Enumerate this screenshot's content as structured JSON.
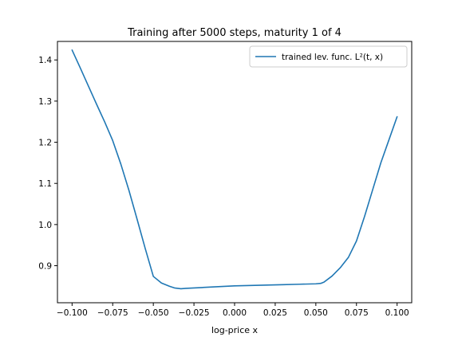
{
  "chart_data": {
    "type": "line",
    "title": "Training after 5000 steps, maturity 1 of 4",
    "xlabel": "log-price x",
    "ylabel": "",
    "xlim": [
      -0.109,
      0.109
    ],
    "ylim": [
      0.81,
      1.445
    ],
    "xticks": [
      -0.1,
      -0.075,
      -0.05,
      -0.025,
      0.0,
      0.025,
      0.05,
      0.075,
      0.1
    ],
    "xtick_labels": [
      "−0.100",
      "−0.075",
      "−0.050",
      "−0.025",
      "0.000",
      "0.025",
      "0.050",
      "0.075",
      "0.100"
    ],
    "yticks": [
      0.9,
      1.0,
      1.1,
      1.2,
      1.3,
      1.4
    ],
    "ytick_labels": [
      "0.9",
      "1.0",
      "1.1",
      "1.2",
      "1.3",
      "1.4"
    ],
    "grid": false,
    "legend_position": "top-right",
    "color": "#1f77b4",
    "series": [
      {
        "name": "trained lev. func. L²(t, x)",
        "x": [
          -0.1,
          -0.095,
          -0.09,
          -0.085,
          -0.08,
          -0.075,
          -0.07,
          -0.065,
          -0.06,
          -0.055,
          -0.05,
          -0.045,
          -0.04,
          -0.037,
          -0.035,
          -0.033,
          -0.03,
          -0.025,
          -0.02,
          -0.01,
          0.0,
          0.01,
          0.02,
          0.03,
          0.04,
          0.05,
          0.053,
          0.055,
          0.06,
          0.065,
          0.07,
          0.075,
          0.08,
          0.085,
          0.09,
          0.095,
          0.1
        ],
        "y": [
          1.424,
          1.381,
          1.337,
          1.293,
          1.25,
          1.204,
          1.147,
          1.083,
          1.013,
          0.942,
          0.874,
          0.858,
          0.85,
          0.846,
          0.845,
          0.844,
          0.845,
          0.846,
          0.847,
          0.849,
          0.851,
          0.852,
          0.853,
          0.854,
          0.855,
          0.856,
          0.857,
          0.86,
          0.875,
          0.895,
          0.92,
          0.96,
          1.02,
          1.085,
          1.15,
          1.206,
          1.262
        ]
      }
    ]
  }
}
